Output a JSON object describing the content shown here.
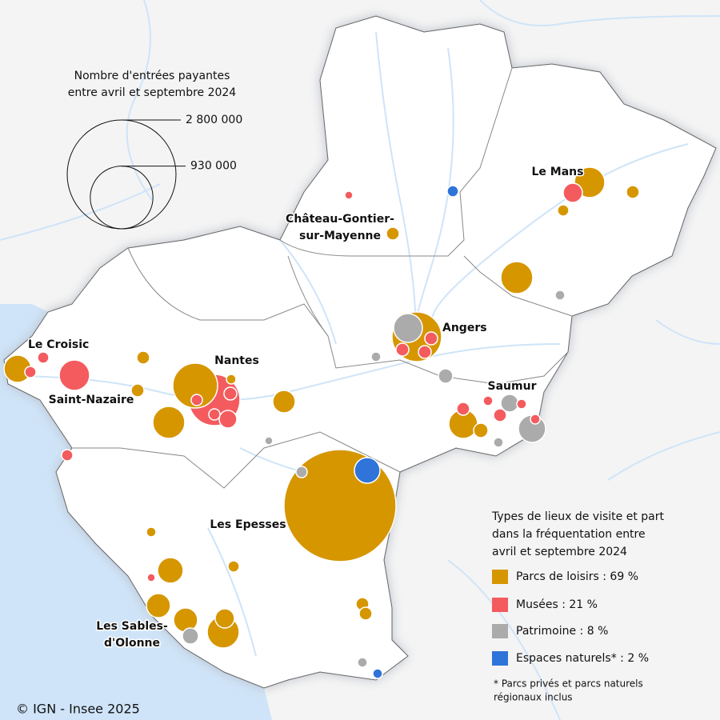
{
  "size_legend": {
    "title_lines": [
      "Nombre d'entrées payantes",
      "entre avril et septembre 2024"
    ],
    "ticks": [
      {
        "value": 2800000,
        "label": "2 800 000"
      },
      {
        "value": 930000,
        "label": "930 000"
      }
    ]
  },
  "cities": [
    {
      "lines": [
        "Le Mans"
      ]
    },
    {
      "lines": [
        "Château-Gontier-",
        "sur-Mayenne"
      ]
    },
    {
      "lines": [
        "Angers"
      ]
    },
    {
      "lines": [
        "Le Croisic"
      ]
    },
    {
      "lines": [
        "Saint-Nazaire"
      ]
    },
    {
      "lines": [
        "Nantes"
      ]
    },
    {
      "lines": [
        "Saumur"
      ]
    },
    {
      "lines": [
        "Les Epesses"
      ]
    },
    {
      "lines": [
        "Les Sables-",
        "d'Olonne"
      ]
    }
  ],
  "types_legend": {
    "title_lines": [
      "Types de lieux de visite et part",
      "dans la fréquentation entre",
      "avril et septembre 2024"
    ],
    "categories": [
      {
        "label": "Parcs de loisirs : 69 %",
        "color": "#d69600",
        "values": [
          2970000,
          582000,
          219000,
          30000,
          39000,
          242000,
          39000,
          475000,
          22000,
          242000,
          119000,
          39000,
          39000,
          175000,
          196000,
          49000,
          22000,
          155000,
          30000,
          136000,
          136000,
          242000,
          87000,
          39000,
          39000
        ]
      },
      {
        "label": "Musées : 21 %",
        "color": "#f45b5e",
        "values": [
          620000,
          87000,
          15000,
          39000,
          39000,
          39000,
          30000,
          39000,
          73000,
          30000,
          30000,
          30000,
          219000,
          30000,
          39000,
          22000,
          39000,
          22000,
          22000,
          15000
        ]
      },
      {
        "label": "Patrimoine : 8 %",
        "color": "#ababab",
        "values": [
          196000,
          22000,
          22000,
          30000,
          15000,
          49000,
          73000,
          175000,
          22000,
          61000,
          22000
        ]
      },
      {
        "label": "Espaces naturels* : 2 %",
        "color": "#2f74d8",
        "values": [
          155000,
          30000,
          22000
        ]
      }
    ],
    "footnote_lines": [
      "* Parcs privés et parcs naturels",
      "régionaux inclus"
    ]
  },
  "source": "© IGN - Insee 2025"
}
